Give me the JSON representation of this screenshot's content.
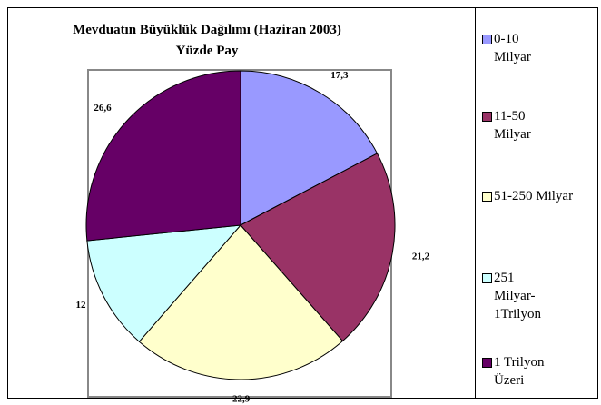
{
  "chart_data": {
    "type": "pie",
    "title": "Mevduatın Büyüklük Dağılımı (Haziran 2003)",
    "subtitle": "Yüzde Pay",
    "categories": [
      "0-10 Milyar",
      "11-50 Milyar",
      "51-250 Milyar",
      "251 Milyar-1Trilyon",
      "1 Trilyon Üzeri"
    ],
    "values": [
      17.3,
      21.2,
      22.9,
      12,
      26.6
    ],
    "value_labels": [
      "17,3",
      "21,2",
      "22,9",
      "12",
      "26,6"
    ],
    "colors": [
      "#9999ff",
      "#993366",
      "#ffffcc",
      "#ccffff",
      "#660066"
    ],
    "legend": "right"
  }
}
